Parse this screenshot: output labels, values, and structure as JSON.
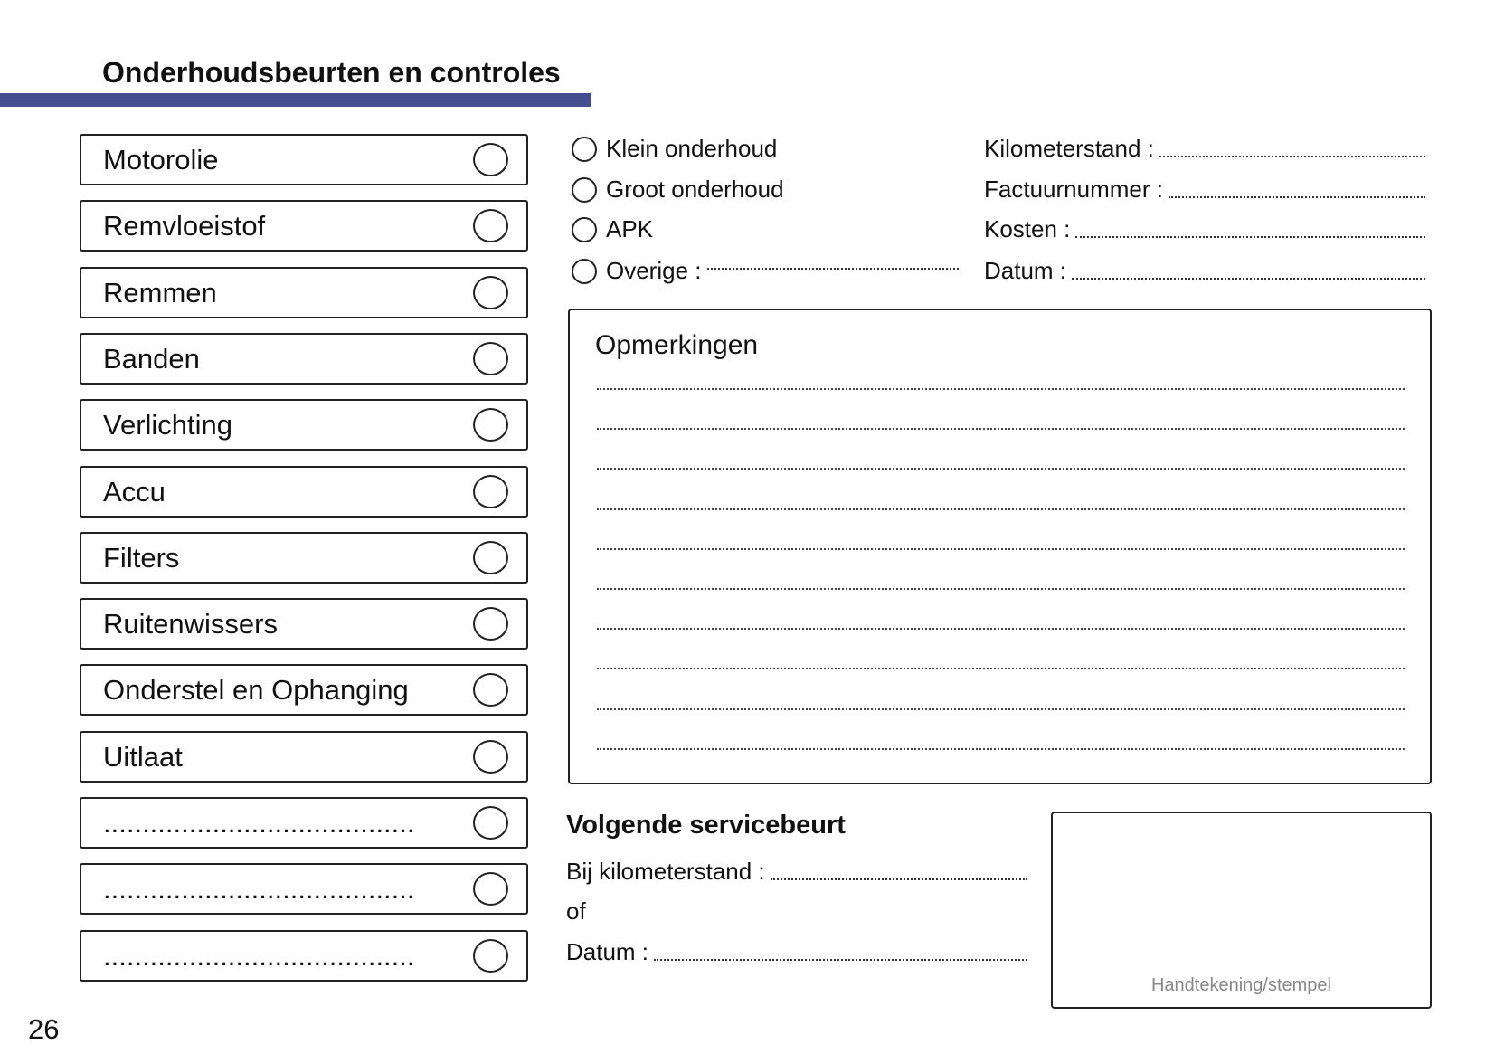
{
  "title": "Onderhoudsbeurten en controles",
  "accent_color": "#454f8f",
  "checklist": [
    {
      "label": "Motorolie"
    },
    {
      "label": "Remvloeistof"
    },
    {
      "label": "Remmen"
    },
    {
      "label": "Banden"
    },
    {
      "label": "Verlichting"
    },
    {
      "label": "Accu"
    },
    {
      "label": "Filters"
    },
    {
      "label": "Ruitenwissers"
    },
    {
      "label": "Onderstel en Ophanging"
    },
    {
      "label": "Uitlaat"
    },
    {
      "label": "........................................"
    },
    {
      "label": "........................................"
    },
    {
      "label": "........................................"
    }
  ],
  "service_types": [
    {
      "label": "Klein onderhoud"
    },
    {
      "label": "Groot onderhoud"
    },
    {
      "label": "APK"
    },
    {
      "label": "Overige :"
    }
  ],
  "details": [
    {
      "label": "Kilometerstand :"
    },
    {
      "label": "Factuurnummer :"
    },
    {
      "label": "Kosten :"
    },
    {
      "label": "Datum :"
    }
  ],
  "remarks": {
    "title": "Opmerkingen",
    "line_count": 10
  },
  "next_service": {
    "title": "Volgende servicebeurt",
    "mileage_label": "Bij kilometerstand :",
    "or_label": "of",
    "date_label": "Datum :"
  },
  "stamp_label": "Handtekening/stempel",
  "page_number": "26"
}
